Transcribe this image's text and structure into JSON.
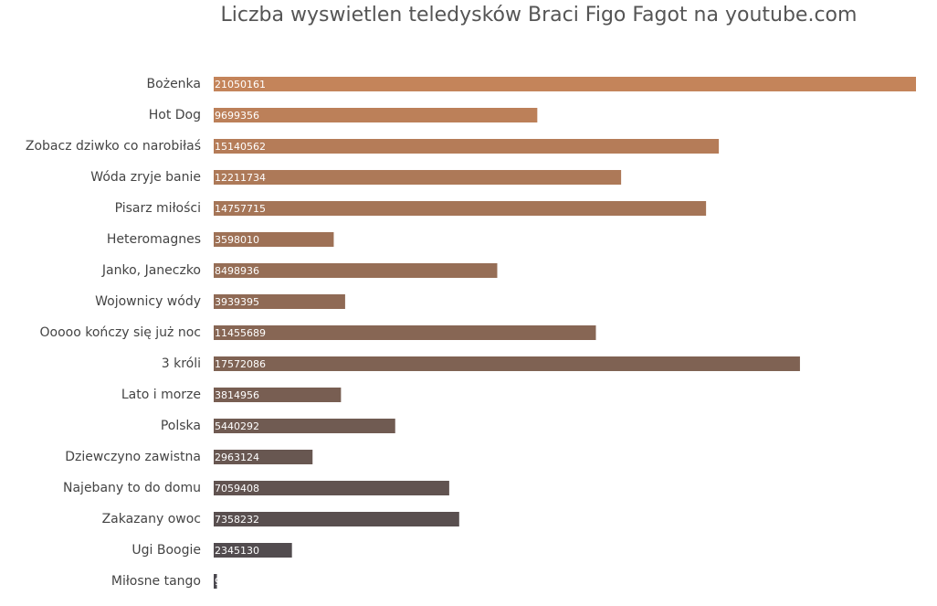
{
  "chart_data": {
    "type": "barh",
    "title": "Liczba wyswietlen teledysków Braci Figo Fagot na youtube.com",
    "categories": [
      "Bożenka",
      "Hot Dog",
      "Zobacz dziwko co narobiłaś",
      "Wóda zryje banie",
      "Pisarz miłości",
      "Heteromagnes",
      "Janko, Janeczko",
      "Wojownicy wódy",
      "Ooooo kończy się już noc",
      "3 króli",
      "Lato i morze",
      "Polska",
      "Dziewczyno zawistna",
      "Najebany to do domu",
      "Zakazany owoc",
      "Ugi Boogie",
      "Miłosne tango"
    ],
    "values": [
      21050161,
      9699356,
      15140562,
      12211734,
      14757715,
      3598010,
      8498936,
      3939395,
      11455689,
      17572086,
      3814956,
      5440292,
      2963124,
      7059408,
      7358232,
      2345130,
      96255
    ],
    "colors": [
      "#c4845a",
      "#bc8059",
      "#b57c58",
      "#ad7958",
      "#a57557",
      "#9e7156",
      "#966e56",
      "#8f6a55",
      "#876654",
      "#7f6253",
      "#785e52",
      "#705b52",
      "#685751",
      "#615350",
      "#594f4f",
      "#524c4f",
      "#4a484e"
    ],
    "xlim": [
      0,
      21050161
    ]
  }
}
